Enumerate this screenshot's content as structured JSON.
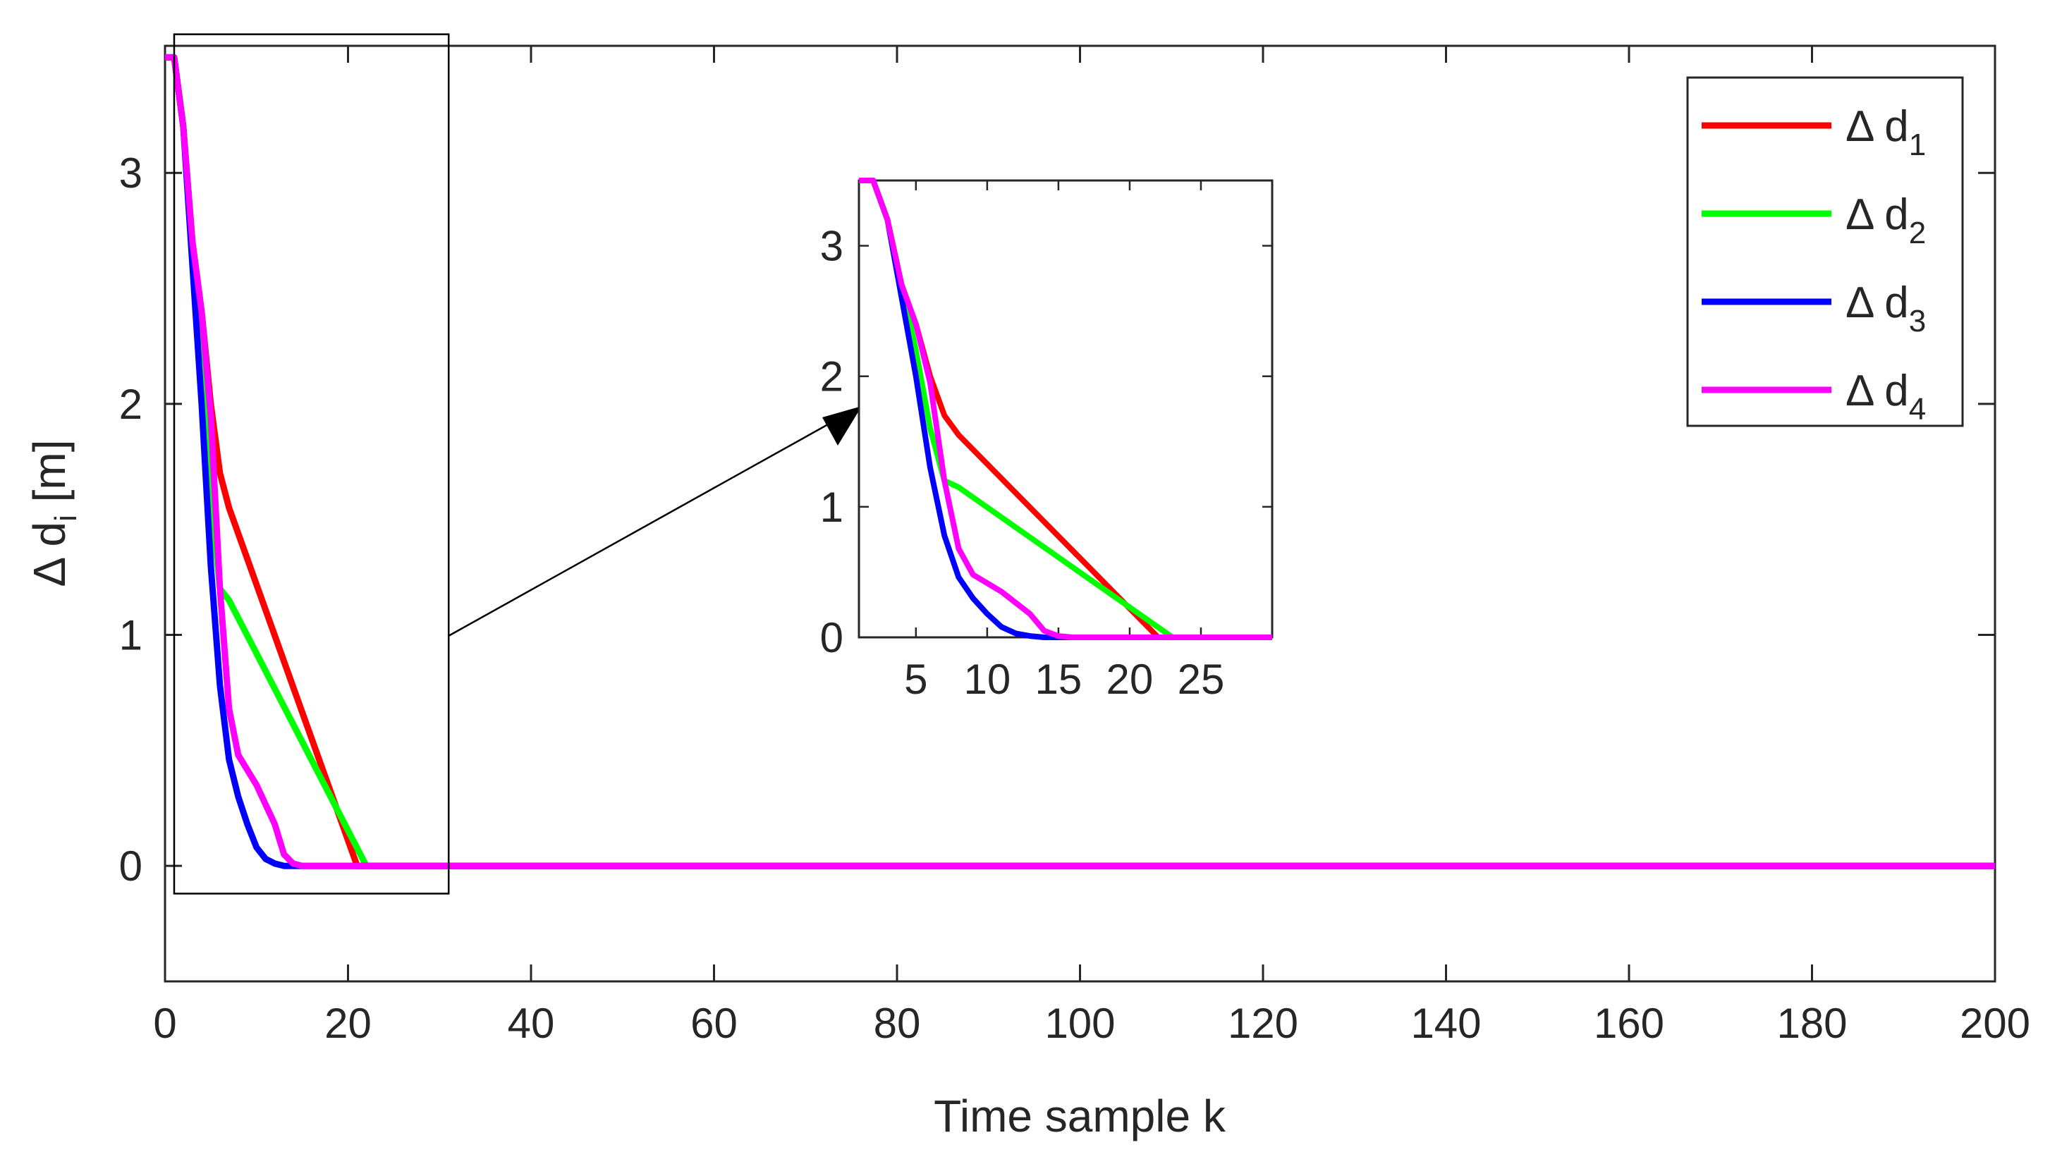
{
  "chart_data": [
    {
      "type": "line",
      "xlabel": "Time sample k",
      "ylabel_parts": {
        "prefix": "Δ d",
        "subscript": "i",
        "suffix": " [m]"
      },
      "xlim": [
        0,
        200
      ],
      "ylim": [
        -0.5,
        3.55
      ],
      "xticks": [
        0,
        20,
        40,
        60,
        80,
        100,
        120,
        140,
        160,
        180,
        200
      ],
      "yticks": [
        0,
        1,
        2,
        3
      ],
      "grid": false,
      "legend_position": "top-right",
      "series": [
        {
          "name": "Δ d1",
          "label_main": "Δ d",
          "label_sub": "1",
          "color": "#ff0000",
          "x": [
            0,
            1,
            2,
            3,
            4,
            5,
            6,
            7,
            21,
            22,
            200
          ],
          "y": [
            3.5,
            3.5,
            3.2,
            2.7,
            2.4,
            2.0,
            1.7,
            1.55,
            0.0,
            0.0,
            0.0
          ]
        },
        {
          "name": "Δ d2",
          "label_main": "Δ d",
          "label_sub": "2",
          "color": "#00ff00",
          "x": [
            0,
            1,
            2,
            3,
            4,
            5,
            6,
            7,
            22,
            23,
            200
          ],
          "y": [
            3.5,
            3.5,
            3.2,
            2.7,
            2.2,
            1.6,
            1.2,
            1.15,
            0.0,
            0.0,
            0.0
          ]
        },
        {
          "name": "Δ d3",
          "label_main": "Δ d",
          "label_sub": "3",
          "color": "#0000ff",
          "x": [
            0,
            1,
            2,
            3,
            4,
            5,
            6,
            7,
            8,
            9,
            10,
            11,
            12,
            13,
            14,
            200
          ],
          "y": [
            3.5,
            3.5,
            3.2,
            2.6,
            2.0,
            1.3,
            0.78,
            0.46,
            0.3,
            0.18,
            0.08,
            0.03,
            0.01,
            0.0,
            0.0,
            0.0
          ]
        },
        {
          "name": "Δ d4",
          "label_main": "Δ d",
          "label_sub": "4",
          "color": "#ff00ff",
          "x": [
            0,
            1,
            2,
            3,
            4,
            5,
            6,
            7,
            8,
            10,
            12,
            13,
            14,
            15,
            200
          ],
          "y": [
            3.5,
            3.5,
            3.2,
            2.7,
            2.4,
            1.95,
            1.2,
            0.68,
            0.48,
            0.35,
            0.18,
            0.05,
            0.01,
            0.0,
            0.0
          ]
        }
      ]
    },
    {
      "type": "line",
      "role": "inset zoom",
      "xlim": [
        1,
        30
      ],
      "ylim": [
        0,
        3.5
      ],
      "xticks": [
        5,
        10,
        15,
        20,
        25
      ],
      "yticks": [
        0,
        1,
        2,
        3
      ],
      "highlight_region": {
        "x": [
          1,
          31
        ],
        "y": [
          -0.12,
          3.6
        ]
      }
    }
  ]
}
